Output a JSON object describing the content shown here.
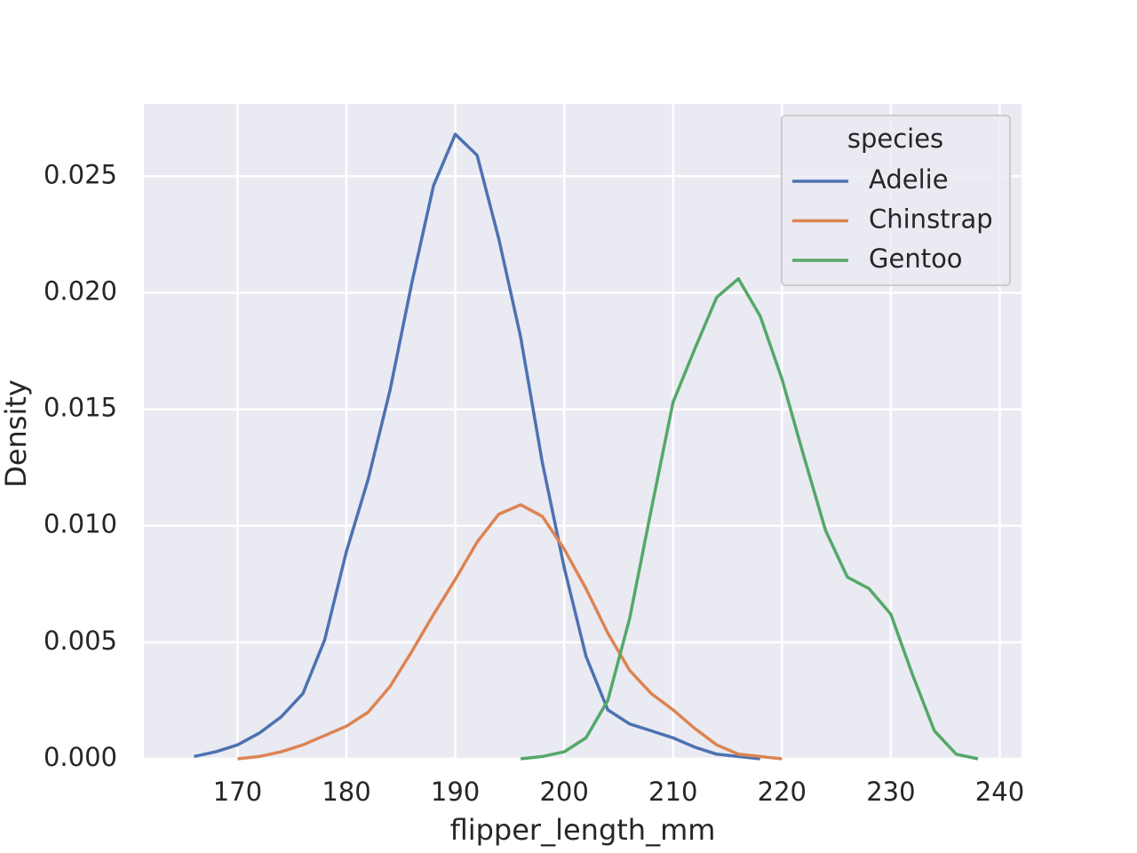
{
  "chart_data": {
    "type": "line",
    "x_label": "flipper_length_mm",
    "y_label": "Density",
    "legend_title": "species",
    "legend_position": "upper right",
    "grid": true,
    "xlim": [
      161.4,
      242.0
    ],
    "ylim": [
      0,
      0.0281
    ],
    "xticks": [
      170,
      180,
      190,
      200,
      210,
      220,
      230,
      240
    ],
    "yticks": [
      {
        "value": 0,
        "label": "0.000"
      },
      {
        "value": 0.005,
        "label": "0.005"
      },
      {
        "value": 0.01,
        "label": "0.010"
      },
      {
        "value": 0.015,
        "label": "0.015"
      },
      {
        "value": 0.02,
        "label": "0.020"
      },
      {
        "value": 0.025,
        "label": "0.025"
      }
    ],
    "x": [
      166,
      168,
      170,
      172,
      174,
      176,
      178,
      180,
      182,
      184,
      186,
      188,
      190,
      192,
      194,
      196,
      198,
      200,
      202,
      204,
      206,
      208,
      210,
      212,
      214,
      216,
      218,
      220,
      222,
      224,
      226,
      228,
      230,
      232,
      234,
      236,
      238
    ],
    "series": [
      {
        "name": "Adelie",
        "color": "#4c72b0",
        "values": [
          0.0001,
          0.0003,
          0.0006,
          0.0011,
          0.0018,
          0.0028,
          0.0051,
          0.0089,
          0.012,
          0.0158,
          0.0204,
          0.0246,
          0.0268,
          0.0259,
          0.0223,
          0.0181,
          0.0127,
          0.0082,
          0.0044,
          0.0021,
          0.0015,
          0.0012,
          0.0009,
          0.0005,
          0.0002,
          0.0001,
          0.0,
          null,
          null,
          null,
          null,
          null,
          null,
          null,
          null,
          null,
          null
        ]
      },
      {
        "name": "Chinstrap",
        "color": "#dd8452",
        "values": [
          null,
          null,
          0.0,
          0.0001,
          0.0003,
          0.0006,
          0.001,
          0.0014,
          0.002,
          0.0031,
          0.0046,
          0.0062,
          0.0077,
          0.0093,
          0.0105,
          0.0109,
          0.0104,
          0.009,
          0.0073,
          0.0054,
          0.0038,
          0.0028,
          0.0021,
          0.0013,
          0.0006,
          0.0002,
          0.0001,
          0.0,
          null,
          null,
          null,
          null,
          null,
          null,
          null,
          null,
          null
        ]
      },
      {
        "name": "Gentoo",
        "color": "#55a868",
        "values": [
          null,
          null,
          null,
          null,
          null,
          null,
          null,
          null,
          null,
          null,
          null,
          null,
          null,
          null,
          null,
          0.0,
          0.0001,
          0.0003,
          0.0009,
          0.0025,
          0.006,
          0.0107,
          0.0153,
          0.0176,
          0.0198,
          0.0206,
          0.019,
          0.0163,
          0.013,
          0.0098,
          0.0078,
          0.0073,
          0.0062,
          0.0036,
          0.0012,
          0.0002,
          0.0
        ]
      }
    ]
  }
}
